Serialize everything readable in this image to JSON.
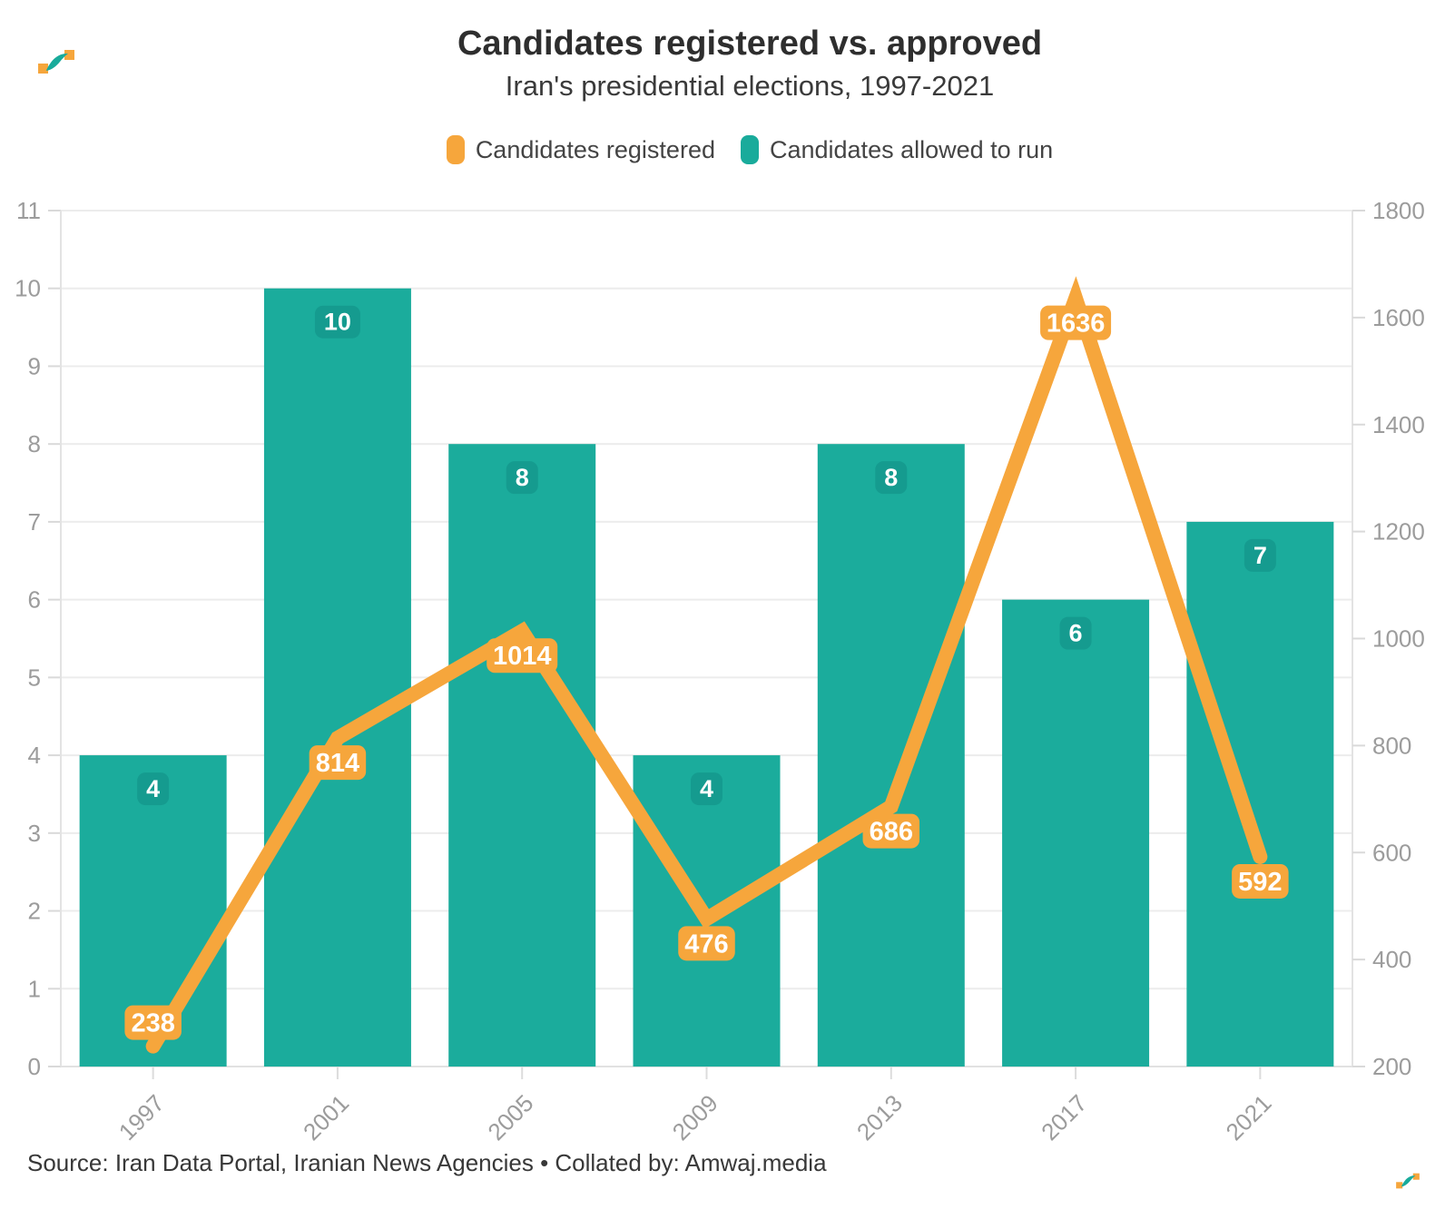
{
  "header": {
    "title": "Candidates registered vs. approved",
    "subtitle": "Iran's presidential elections, 1997-2021"
  },
  "legend": [
    {
      "label": "Candidates registered",
      "color": "#F6A63C"
    },
    {
      "label": "Candidates allowed to run",
      "color": "#19AB9B"
    }
  ],
  "footer": {
    "source": "Source: Iran Data Portal, Iranian News Agencies • Collated by: Amwaj.media"
  },
  "logo": "amwaj-media-mark",
  "chart_data": {
    "type": "bar",
    "subtype": "bar-and-line-dual-axis",
    "categories": [
      "1997",
      "2001",
      "2005",
      "2009",
      "2013",
      "2017",
      "2021"
    ],
    "series": [
      {
        "name": "Candidates registered",
        "type": "line",
        "axis": "right",
        "color": "#F6A63C",
        "values": [
          238,
          814,
          1014,
          476,
          686,
          1636,
          592
        ]
      },
      {
        "name": "Candidates allowed to run",
        "type": "bar",
        "axis": "left",
        "color": "#1BAC9C",
        "values": [
          4,
          10,
          8,
          4,
          8,
          6,
          7
        ]
      }
    ],
    "axes": {
      "left": {
        "min": 0,
        "max": 11,
        "ticks": [
          0,
          1,
          2,
          3,
          4,
          5,
          6,
          7,
          8,
          9,
          10,
          11
        ]
      },
      "right": {
        "min": 200,
        "max": 1800,
        "ticks": [
          200,
          400,
          600,
          800,
          1000,
          1200,
          1400,
          1600,
          1800
        ]
      }
    },
    "grid": true,
    "legend_position": "top",
    "bar_label_color": "#159B8F",
    "line_label_color": "#F6A63C"
  }
}
